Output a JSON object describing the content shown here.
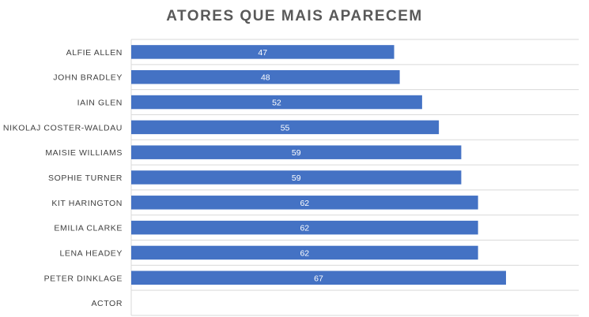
{
  "chart_data": {
    "type": "bar",
    "orientation": "horizontal",
    "title": "ATORES QUE MAIS APARECEM",
    "categories": [
      "ACTOR",
      "PETER DINKLAGE",
      "LENA HEADEY",
      "EMILIA CLARKE",
      "KIT HARINGTON",
      "SOPHIE TURNER",
      "MAISIE WILLIAMS",
      "NIKOLAJ COSTER-WALDAU",
      "IAIN GLEN",
      "JOHN BRADLEY",
      "ALFIE ALLEN"
    ],
    "values": [
      null,
      67,
      62,
      62,
      62,
      59,
      59,
      55,
      52,
      48,
      47
    ],
    "xlim": [
      0,
      80
    ],
    "grid": "horizontal",
    "legend": "none",
    "data_labels": true,
    "bar_color": "#4472C4",
    "grid_color": "#D9D9D9"
  }
}
